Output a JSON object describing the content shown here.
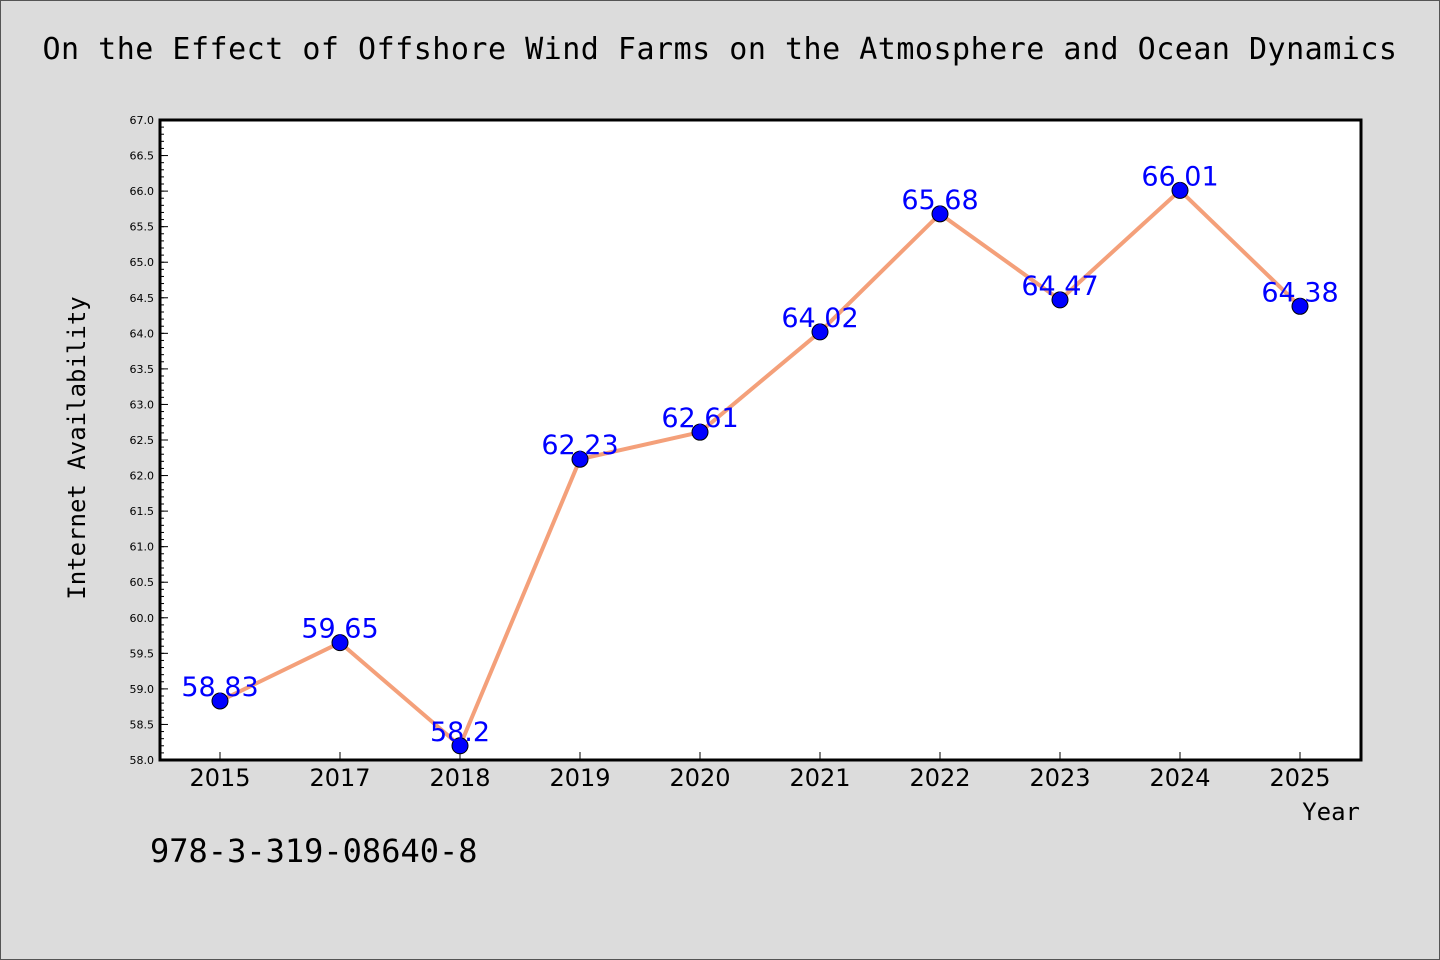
{
  "title": "On the Effect of Offshore Wind Farms on the Atmosphere and Ocean Dynamics",
  "footer_code": "978-3-319-08640-8",
  "chart_data": {
    "type": "line",
    "title": "On the Effect of Offshore Wind Farms on the Atmosphere and Ocean Dynamics",
    "xlabel": "Year",
    "ylabel": "Internet Availability",
    "categories": [
      "2015",
      "2017",
      "2018",
      "2019",
      "2020",
      "2021",
      "2022",
      "2023",
      "2024",
      "2025"
    ],
    "series": [
      {
        "values": [
          58.83,
          59.65,
          58.2,
          62.23,
          62.61,
          64.02,
          65.68,
          64.47,
          66.01,
          64.38
        ],
        "labels": [
          "58.83",
          "59.65",
          "58.2",
          "62.23",
          "62.61",
          "64.02",
          "65.68",
          "64.47",
          "66.01",
          "64.38"
        ]
      }
    ],
    "ylim": [
      58.0,
      67.0
    ],
    "y_ticks": [
      "58.0",
      "58.5",
      "59.0",
      "59.5",
      "60.0",
      "60.5",
      "61.0",
      "61.5",
      "62.0",
      "62.5",
      "63.0",
      "63.5",
      "64.0",
      "64.5",
      "65.0",
      "65.5",
      "66.0",
      "66.5",
      "67.0"
    ],
    "grid": false,
    "legend": "none",
    "colors": {
      "line": "#f4a07a",
      "marker": "#0000ff",
      "data_label": "#0000ff",
      "background": "#dcdcdc",
      "plot_background": "#ffffff"
    }
  }
}
